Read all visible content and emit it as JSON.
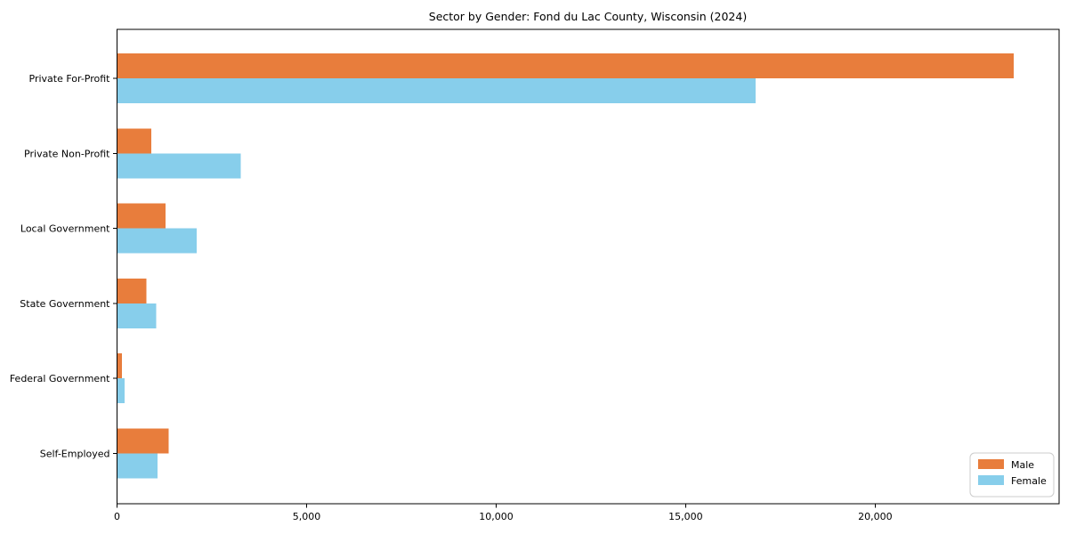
{
  "title": "Sector by Gender: Fond du Lac County, Wisconsin (2024)",
  "chart_data": {
    "type": "bar",
    "orientation": "horizontal",
    "title": "Sector by Gender: Fond du Lac County, Wisconsin (2024)",
    "categories": [
      "Private For-Profit",
      "Private Non-Profit",
      "Local Government",
      "State Government",
      "Federal Government",
      "Self-Employed"
    ],
    "series": [
      {
        "name": "Male",
        "color": "#e87d3c",
        "values": [
          23650,
          900,
          1280,
          770,
          130,
          1360
        ]
      },
      {
        "name": "Female",
        "color": "#87ceeb",
        "values": [
          16840,
          3260,
          2100,
          1030,
          200,
          1070
        ]
      }
    ],
    "xlabel": "",
    "ylabel": "",
    "xlim": [
      0,
      24850
    ],
    "xticks": [
      0,
      5000,
      10000,
      15000,
      20000
    ],
    "xtick_labels": [
      "0",
      "5,000",
      "10,000",
      "15,000",
      "20,000"
    ],
    "grid": false,
    "legend_position": "lower right",
    "axis_color": "#000000",
    "legend_border_color": "#cccccc",
    "background_color": "#ffffff"
  }
}
